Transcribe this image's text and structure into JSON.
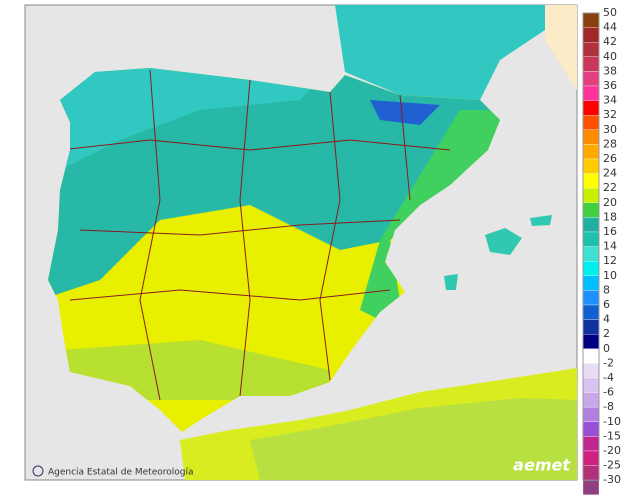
{
  "color_scale": {
    "ticks": [
      50,
      44,
      42,
      40,
      38,
      36,
      34,
      32,
      30,
      28,
      26,
      24,
      22,
      20,
      18,
      16,
      14,
      12,
      10,
      8,
      6,
      4,
      2,
      0,
      -2,
      -4,
      -6,
      -8,
      -10,
      -15,
      -20,
      -25,
      -30
    ],
    "colors": [
      "#8b4010",
      "#a02828",
      "#b03040",
      "#c83858",
      "#e04080",
      "#ff3399",
      "#ff0000",
      "#ff5000",
      "#ff8c00",
      "#ffaa00",
      "#ffcc00",
      "#ffff00",
      "#c8f000",
      "#40d040",
      "#20b0a0",
      "#20c0b0",
      "#40e0d0",
      "#00f0f0",
      "#00bfff",
      "#1e90ff",
      "#1060d0",
      "#1030a0",
      "#000080",
      "#e8dcf4",
      "#d8c4ee",
      "#c8a8e8",
      "#b080e0",
      "#9850d8",
      "#c02890",
      "#d02080",
      "#b0307a",
      "#904080"
    ]
  },
  "footer": {
    "credit": "Agencia Estatal de Meteorología",
    "logo": "aemet"
  }
}
